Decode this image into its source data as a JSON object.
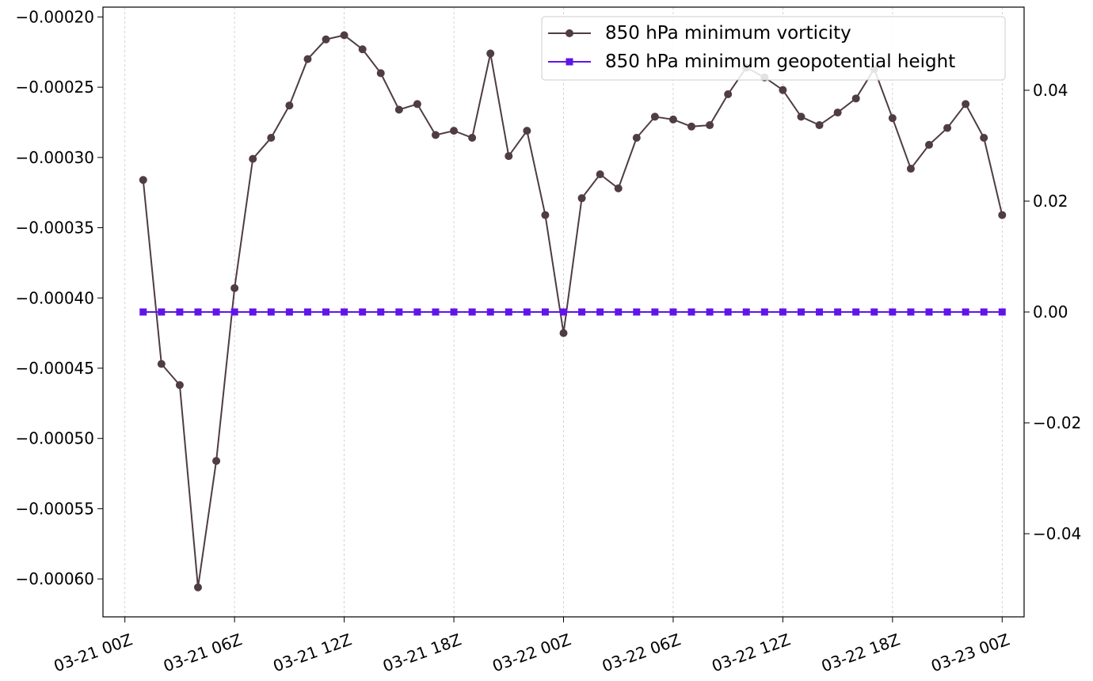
{
  "chart_data": {
    "type": "line",
    "x_tick_labels": [
      "03-21 00Z",
      "03-21 06Z",
      "03-21 12Z",
      "03-21 18Z",
      "03-22 00Z",
      "03-22 06Z",
      "03-22 12Z",
      "03-22 18Z",
      "03-23 00Z"
    ],
    "x_tick_hours": [
      0,
      6,
      12,
      18,
      24,
      30,
      36,
      42,
      48
    ],
    "x_unit": "hours from 03-21 00Z",
    "x_range_hours": [
      -1.2,
      49.2
    ],
    "x_grid": true,
    "left_axis": {
      "range": [
        -0.000627,
        -0.000193
      ],
      "ticks": [
        -0.0002,
        -0.00025,
        -0.0003,
        -0.00035,
        -0.0004,
        -0.00045,
        -0.0005,
        -0.00055,
        -0.0006
      ],
      "tick_labels": [
        "−0.00020",
        "−0.00025",
        "−0.00030",
        "−0.00035",
        "−0.00040",
        "−0.00045",
        "−0.00050",
        "−0.00055",
        "−0.00060"
      ]
    },
    "right_axis": {
      "range": [
        -0.055,
        0.055
      ],
      "ticks": [
        0.04,
        0.02,
        0.0,
        -0.02,
        -0.04
      ],
      "tick_labels": [
        "0.04",
        "0.02",
        "0.00",
        "−0.02",
        "−0.04"
      ]
    },
    "legend_position": "top-right",
    "series": [
      {
        "name": "850 hPa minimum vorticity",
        "axis": "left",
        "color": "#4f3c44",
        "marker": "circle",
        "x": [
          1,
          2,
          3,
          4,
          5,
          6,
          7,
          8,
          9,
          10,
          11,
          12,
          13,
          14,
          15,
          16,
          17,
          18,
          19,
          20,
          21,
          22,
          23,
          24,
          25,
          26,
          27,
          28,
          29,
          30,
          31,
          32,
          33,
          34,
          35,
          36,
          37,
          38,
          39,
          40,
          41,
          42,
          43,
          44,
          45,
          46,
          47,
          48
        ],
        "values": [
          -0.000316,
          -0.000447,
          -0.000462,
          -0.000606,
          -0.000516,
          -0.000393,
          -0.000301,
          -0.000286,
          -0.000263,
          -0.00023,
          -0.000216,
          -0.000213,
          -0.000223,
          -0.00024,
          -0.000266,
          -0.000262,
          -0.000284,
          -0.000281,
          -0.000286,
          -0.000226,
          -0.000299,
          -0.000281,
          -0.000341,
          -0.000425,
          -0.000329,
          -0.000312,
          -0.000322,
          -0.000286,
          -0.000271,
          -0.000273,
          -0.000278,
          -0.000277,
          -0.000255,
          -0.000236,
          -0.000243,
          -0.000252,
          -0.000271,
          -0.000277,
          -0.000268,
          -0.000258,
          -0.000237,
          -0.000272,
          -0.000308,
          -0.000291,
          -0.000279,
          -0.000262,
          -0.000286,
          -0.000341
        ]
      },
      {
        "name": "850 hPa minimum geopotential height",
        "axis": "right",
        "color": "#6214e6",
        "marker": "square",
        "x": [
          1,
          2,
          3,
          4,
          5,
          6,
          7,
          8,
          9,
          10,
          11,
          12,
          13,
          14,
          15,
          16,
          17,
          18,
          19,
          20,
          21,
          22,
          23,
          24,
          25,
          26,
          27,
          28,
          29,
          30,
          31,
          32,
          33,
          34,
          35,
          36,
          37,
          38,
          39,
          40,
          41,
          42,
          43,
          44,
          45,
          46,
          47,
          48
        ],
        "values": [
          0,
          0,
          0,
          0,
          0,
          0,
          0,
          0,
          0,
          0,
          0,
          0,
          0,
          0,
          0,
          0,
          0,
          0,
          0,
          0,
          0,
          0,
          0,
          0,
          0,
          0,
          0,
          0,
          0,
          0,
          0,
          0,
          0,
          0,
          0,
          0,
          0,
          0,
          0,
          0,
          0,
          0,
          0,
          0,
          0,
          0,
          0,
          0
        ]
      }
    ]
  }
}
